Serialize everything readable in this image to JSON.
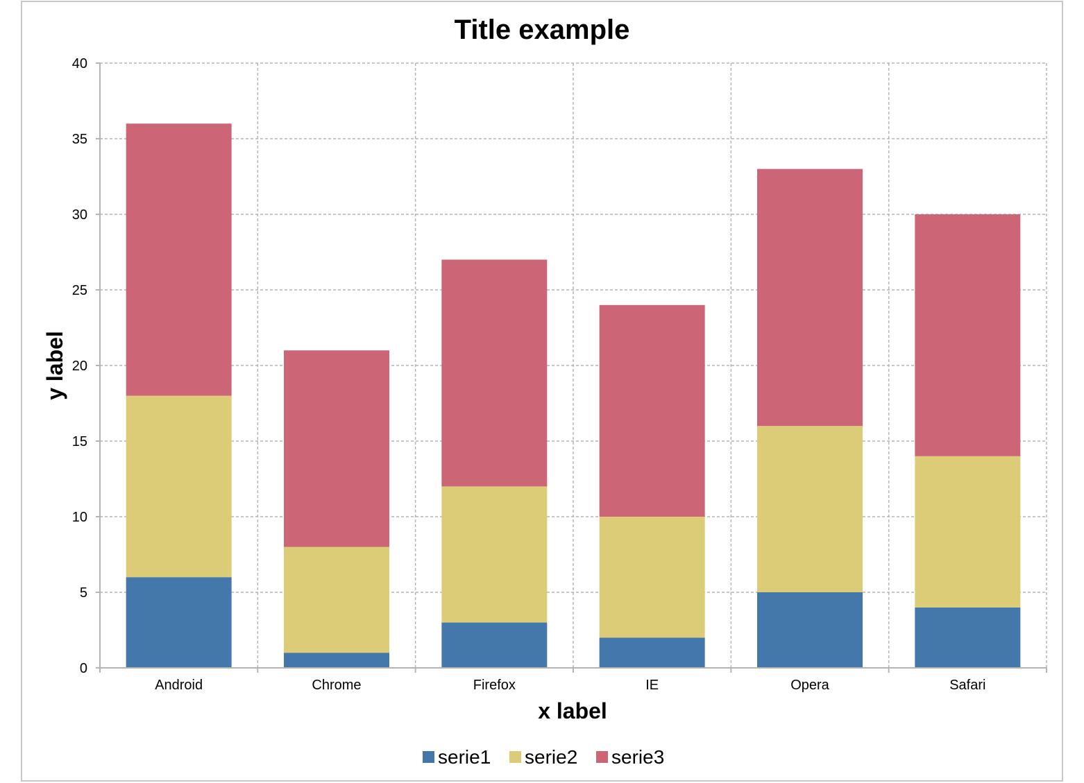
{
  "chart_data": {
    "type": "bar",
    "stacked": true,
    "title": "Title example",
    "xlabel": "x label",
    "ylabel": "y label",
    "categories": [
      "Android",
      "Chrome",
      "Firefox",
      "IE",
      "Opera",
      "Safari"
    ],
    "series": [
      {
        "name": "serie1",
        "color": "#4477aa",
        "values": [
          6,
          1,
          3,
          2,
          5,
          4
        ]
      },
      {
        "name": "serie2",
        "color": "#ddcc77",
        "values": [
          12,
          7,
          9,
          8,
          11,
          10
        ]
      },
      {
        "name": "serie3",
        "color": "#cc6677",
        "values": [
          18,
          13,
          15,
          14,
          17,
          16
        ]
      }
    ],
    "ylim": [
      0,
      40
    ],
    "yticks": [
      0,
      5,
      10,
      15,
      20,
      25,
      30,
      35,
      40
    ],
    "grid": true,
    "legend": "bottom"
  }
}
